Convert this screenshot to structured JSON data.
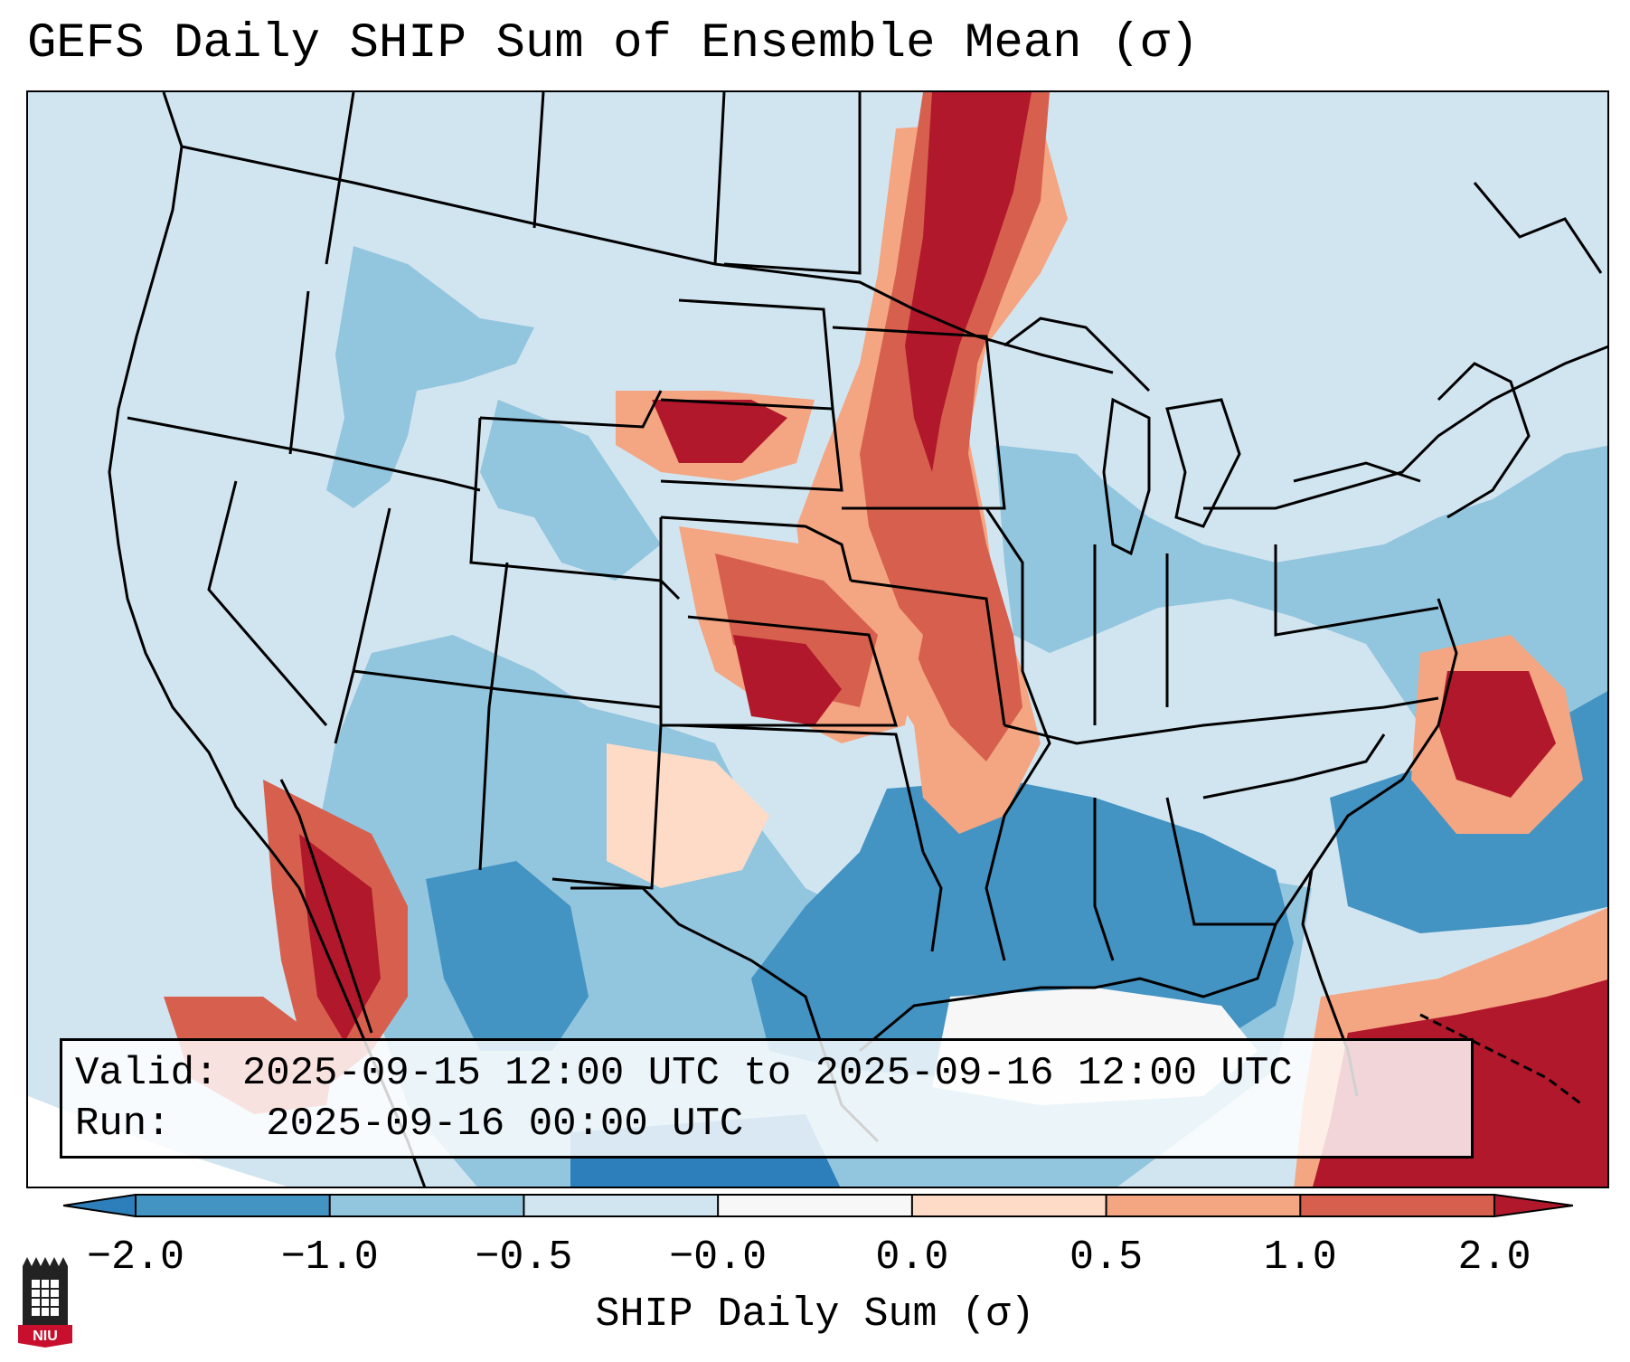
{
  "title": "GEFS Daily SHIP Sum of Ensemble Mean (σ)",
  "infobox": {
    "valid_label": "Valid:",
    "valid_value": "2025-09-15 12:00 UTC to 2025-09-16 12:00 UTC",
    "run_label": "Run:",
    "run_value": "2025-09-16 00:00 UTC"
  },
  "colorbar": {
    "label": "SHIP Daily Sum (σ)",
    "ticks": [
      "−2.0",
      "−1.0",
      "−0.5",
      "−0.0",
      "0.0",
      "0.5",
      "1.0",
      "2.0"
    ],
    "colors": [
      "#2d7fbc",
      "#4393c3",
      "#92c5de",
      "#d1e5f0",
      "#f7f7f7",
      "#fddbc7",
      "#f4a582",
      "#d6604d",
      "#b2182b"
    ],
    "extend": "both"
  },
  "map": {
    "background_color": "#d1e5f0",
    "boundaries": "states, provinces, coastlines",
    "region": "Contiguous United States"
  },
  "logo": {
    "text": "NIU"
  }
}
